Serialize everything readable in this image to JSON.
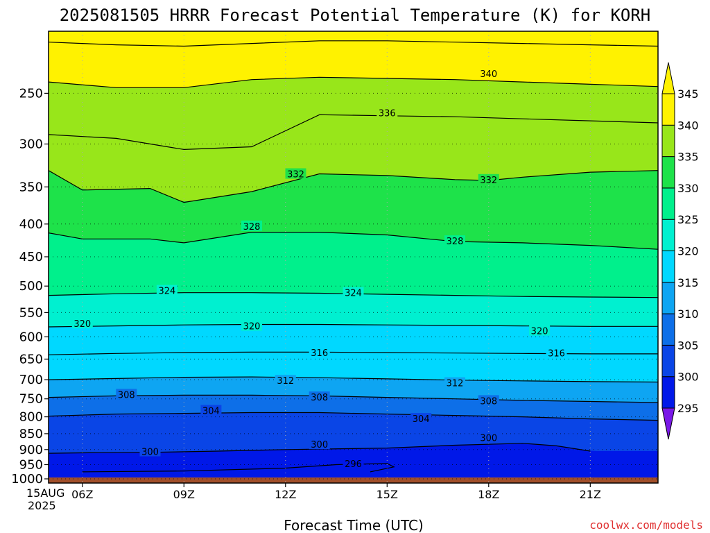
{
  "chart_data": {
    "type": "heatmap",
    "title": "2025081505 HRRR Forecast Potential Temperature (K) for KORH",
    "xlabel": "Forecast Time (UTC)",
    "ylabel": "",
    "credit": "coolwx.com/models",
    "x_ticks": [
      {
        "hour": 6,
        "label": "06Z"
      },
      {
        "hour": 9,
        "label": "09Z"
      },
      {
        "hour": 12,
        "label": "12Z"
      },
      {
        "hour": 15,
        "label": "15Z"
      },
      {
        "hour": 18,
        "label": "18Z"
      },
      {
        "hour": 21,
        "label": "21Z"
      }
    ],
    "x_date_label": [
      "15AUG",
      "2025"
    ],
    "xlim_hours": [
      5,
      23
    ],
    "y_scale": "log-pressure",
    "y_reversed": true,
    "y_ticks": [
      250,
      300,
      350,
      400,
      450,
      500,
      550,
      600,
      650,
      700,
      750,
      800,
      850,
      900,
      950,
      1000
    ],
    "ylim_hPa": [
      200,
      1015
    ],
    "surface_pressure_hPa": 995,
    "grid": true,
    "colorbar": {
      "position": "right",
      "extend": "both",
      "levels": [
        295,
        300,
        305,
        310,
        315,
        320,
        325,
        330,
        335,
        340,
        345
      ],
      "colors": [
        "#7a18e8",
        "#0018e8",
        "#0a45e6",
        "#0d6fe8",
        "#0ea5f2",
        "#00d8ff",
        "#00f0d0",
        "#00f08c",
        "#1ee24a",
        "#98e61a",
        "#fff200"
      ]
    },
    "contours": [
      {
        "value": 296,
        "label": "296",
        "points": [
          [
            6,
            975
          ],
          [
            9,
            972
          ],
          [
            12,
            962
          ],
          [
            13.5,
            950
          ],
          [
            15,
            946
          ],
          [
            15.2,
            958
          ],
          [
            14.5,
            975
          ]
        ]
      },
      {
        "value": 300,
        "label": "300",
        "points": [
          [
            5,
            912
          ],
          [
            6.5,
            910
          ],
          [
            8,
            909
          ],
          [
            10,
            905
          ],
          [
            12,
            900
          ],
          [
            15,
            895
          ],
          [
            17,
            886
          ],
          [
            19,
            880
          ],
          [
            20,
            888
          ],
          [
            21,
            905
          ]
        ]
      },
      {
        "value": 304,
        "label": "304",
        "points": [
          [
            5,
            798
          ],
          [
            7,
            792
          ],
          [
            9,
            790
          ],
          [
            11,
            788
          ],
          [
            13,
            788
          ],
          [
            15,
            792
          ],
          [
            17,
            796
          ],
          [
            19,
            800
          ],
          [
            21,
            806
          ],
          [
            23,
            810
          ]
        ]
      },
      {
        "value": 308,
        "label": "308",
        "points": [
          [
            5,
            746
          ],
          [
            7,
            742
          ],
          [
            9,
            740
          ],
          [
            11,
            740
          ],
          [
            13,
            742
          ],
          [
            15,
            746
          ],
          [
            17,
            750
          ],
          [
            19,
            754
          ],
          [
            21,
            757
          ],
          [
            23,
            760
          ]
        ]
      },
      {
        "value": 312,
        "label": "312",
        "points": [
          [
            5,
            700
          ],
          [
            7,
            697
          ],
          [
            9,
            694
          ],
          [
            11,
            693
          ],
          [
            13,
            695
          ],
          [
            15,
            698
          ],
          [
            17,
            701
          ],
          [
            19,
            703
          ],
          [
            21,
            705
          ],
          [
            23,
            706
          ]
        ]
      },
      {
        "value": 316,
        "label": "316",
        "points": [
          [
            5,
            640
          ],
          [
            7,
            637
          ],
          [
            9,
            635
          ],
          [
            11,
            634
          ],
          [
            13,
            634
          ],
          [
            15,
            635
          ],
          [
            17,
            636
          ],
          [
            19,
            637
          ],
          [
            21,
            638
          ],
          [
            23,
            638
          ]
        ]
      },
      {
        "value": 320,
        "label": "320",
        "points": [
          [
            5,
            579
          ],
          [
            7,
            577
          ],
          [
            9,
            575
          ],
          [
            11,
            574
          ],
          [
            13,
            574
          ],
          [
            15,
            575
          ],
          [
            17,
            576
          ],
          [
            19,
            577
          ],
          [
            21,
            578
          ],
          [
            23,
            578
          ]
        ]
      },
      {
        "value": 324,
        "label": "324",
        "points": [
          [
            5,
            517
          ],
          [
            7,
            514
          ],
          [
            9,
            512
          ],
          [
            11,
            512
          ],
          [
            13,
            513
          ],
          [
            15,
            515
          ],
          [
            17,
            517
          ],
          [
            19,
            519
          ],
          [
            21,
            520
          ],
          [
            23,
            521
          ]
        ]
      },
      {
        "value": 328,
        "label": "328",
        "points": [
          [
            5,
            413
          ],
          [
            6,
            422
          ],
          [
            8,
            422
          ],
          [
            9,
            428
          ],
          [
            11,
            412
          ],
          [
            13,
            412
          ],
          [
            15,
            416
          ],
          [
            17,
            426
          ],
          [
            19,
            428
          ],
          [
            21,
            432
          ],
          [
            23,
            438
          ]
        ]
      },
      {
        "value": 332,
        "label": "332",
        "points": [
          [
            5,
            330
          ],
          [
            6,
            354
          ],
          [
            8,
            352
          ],
          [
            9,
            370
          ],
          [
            11,
            356
          ],
          [
            13,
            334
          ],
          [
            15,
            336
          ],
          [
            17,
            341
          ],
          [
            18,
            342
          ],
          [
            19,
            338
          ],
          [
            21,
            332
          ],
          [
            23,
            330
          ]
        ]
      },
      {
        "value": 336,
        "label": "336",
        "points": [
          [
            5,
            290
          ],
          [
            7,
            294
          ],
          [
            9,
            306
          ],
          [
            11,
            303
          ],
          [
            13,
            270
          ],
          [
            15,
            271
          ],
          [
            17,
            272
          ],
          [
            19,
            274
          ],
          [
            21,
            276
          ],
          [
            23,
            278
          ]
        ]
      },
      {
        "value": 340,
        "label": "340",
        "points": [
          [
            5,
            240
          ],
          [
            7,
            245
          ],
          [
            9,
            245
          ],
          [
            11,
            238
          ],
          [
            13,
            236
          ],
          [
            15,
            237
          ],
          [
            17,
            238
          ],
          [
            19,
            240
          ],
          [
            21,
            242
          ],
          [
            23,
            244
          ]
        ]
      },
      {
        "value": 344,
        "label": "",
        "points": [
          [
            5,
            208
          ],
          [
            7,
            210
          ],
          [
            9,
            211
          ],
          [
            11,
            209
          ],
          [
            13,
            207
          ],
          [
            15,
            207
          ],
          [
            17,
            208
          ],
          [
            19,
            209
          ],
          [
            21,
            210
          ],
          [
            23,
            211
          ]
        ]
      }
    ],
    "contour_labels": [
      {
        "value": 296,
        "label": "296",
        "hour": 14.0,
        "hPa": 947
      },
      {
        "value": 300,
        "label": "300",
        "hour": 8.0,
        "hPa": 906
      },
      {
        "value": 300,
        "label": "300",
        "hour": 13.0,
        "hPa": 883
      },
      {
        "value": 300,
        "label": "300",
        "hour": 18.0,
        "hPa": 862
      },
      {
        "value": 304,
        "label": "304",
        "hour": 9.8,
        "hPa": 782
      },
      {
        "value": 304,
        "label": "304",
        "hour": 16.0,
        "hPa": 805
      },
      {
        "value": 308,
        "label": "308",
        "hour": 7.3,
        "hPa": 738
      },
      {
        "value": 308,
        "label": "308",
        "hour": 13.0,
        "hPa": 745
      },
      {
        "value": 308,
        "label": "308",
        "hour": 18.0,
        "hPa": 755
      },
      {
        "value": 312,
        "label": "312",
        "hour": 12.0,
        "hPa": 702
      },
      {
        "value": 312,
        "label": "312",
        "hour": 17.0,
        "hPa": 708
      },
      {
        "value": 316,
        "label": "316",
        "hour": 13.0,
        "hPa": 635
      },
      {
        "value": 316,
        "label": "316",
        "hour": 20.0,
        "hPa": 636
      },
      {
        "value": 320,
        "label": "320",
        "hour": 6.0,
        "hPa": 572
      },
      {
        "value": 320,
        "label": "320",
        "hour": 11.0,
        "hPa": 577
      },
      {
        "value": 320,
        "label": "320",
        "hour": 19.5,
        "hPa": 587
      },
      {
        "value": 324,
        "label": "324",
        "hour": 8.5,
        "hPa": 508
      },
      {
        "value": 324,
        "label": "324",
        "hour": 14.0,
        "hPa": 512
      },
      {
        "value": 328,
        "label": "328",
        "hour": 11.0,
        "hPa": 403
      },
      {
        "value": 328,
        "label": "328",
        "hour": 17.0,
        "hPa": 425
      },
      {
        "value": 332,
        "label": "332",
        "hour": 12.3,
        "hPa": 334
      },
      {
        "value": 332,
        "label": "332",
        "hour": 18.0,
        "hPa": 341
      },
      {
        "value": 336,
        "label": "336",
        "hour": 15.0,
        "hPa": 268
      },
      {
        "value": 340,
        "label": "340",
        "hour": 18.0,
        "hPa": 233
      }
    ]
  }
}
